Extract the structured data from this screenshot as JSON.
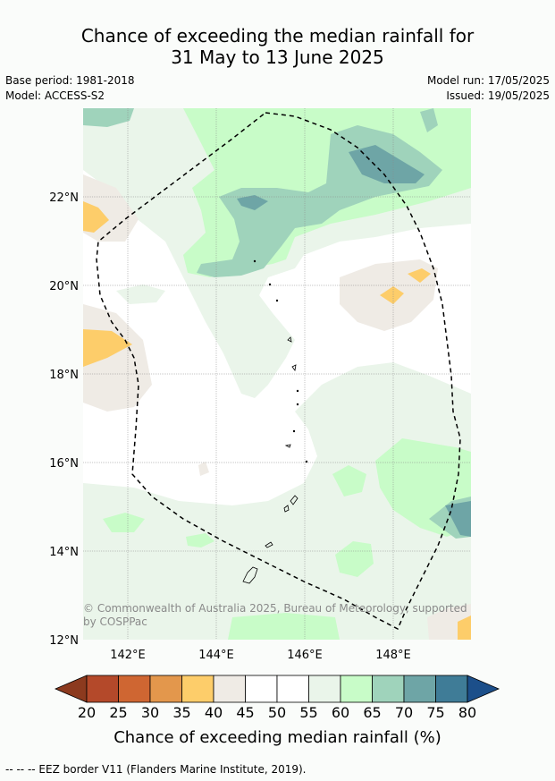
{
  "title": {
    "line1": "Chance of exceeding the median rainfall for",
    "line2": "31 May to 13 June 2025"
  },
  "meta": {
    "base_period": "Base period: 1981-2018",
    "model": "Model: ACCESS-S2",
    "model_run": "Model run: 17/05/2025",
    "issued": "Issued: 19/05/2025"
  },
  "map": {
    "lat_labels": [
      "22°N",
      "20°N",
      "18°N",
      "16°N",
      "14°N",
      "12°N"
    ],
    "lon_labels": [
      "142°E",
      "144°E",
      "146°E",
      "148°E"
    ],
    "copyright_line1": "© Commonwealth of Australia 2025, Bureau of Meteorology, supported",
    "copyright_line2": "by COSPPac"
  },
  "colorbar": {
    "ticks": [
      "20",
      "25",
      "30",
      "35",
      "40",
      "45",
      "50",
      "55",
      "60",
      "65",
      "70",
      "75",
      "80"
    ],
    "colors": [
      "#8c3a1e",
      "#b4492a",
      "#cf6632",
      "#e3974c",
      "#fdcd6a",
      "#efebe5",
      "#ffffff",
      "#ffffff",
      "#eaf5ea",
      "#c8fcc8",
      "#9fd3bb",
      "#6ea5a6",
      "#3f7c97",
      "#1c4f8a"
    ],
    "label": "Chance of exceeding median rainfall (%)"
  },
  "footnote": "--  --  -- EEZ border V11 (Flanders Marine Institute, 2019)."
}
